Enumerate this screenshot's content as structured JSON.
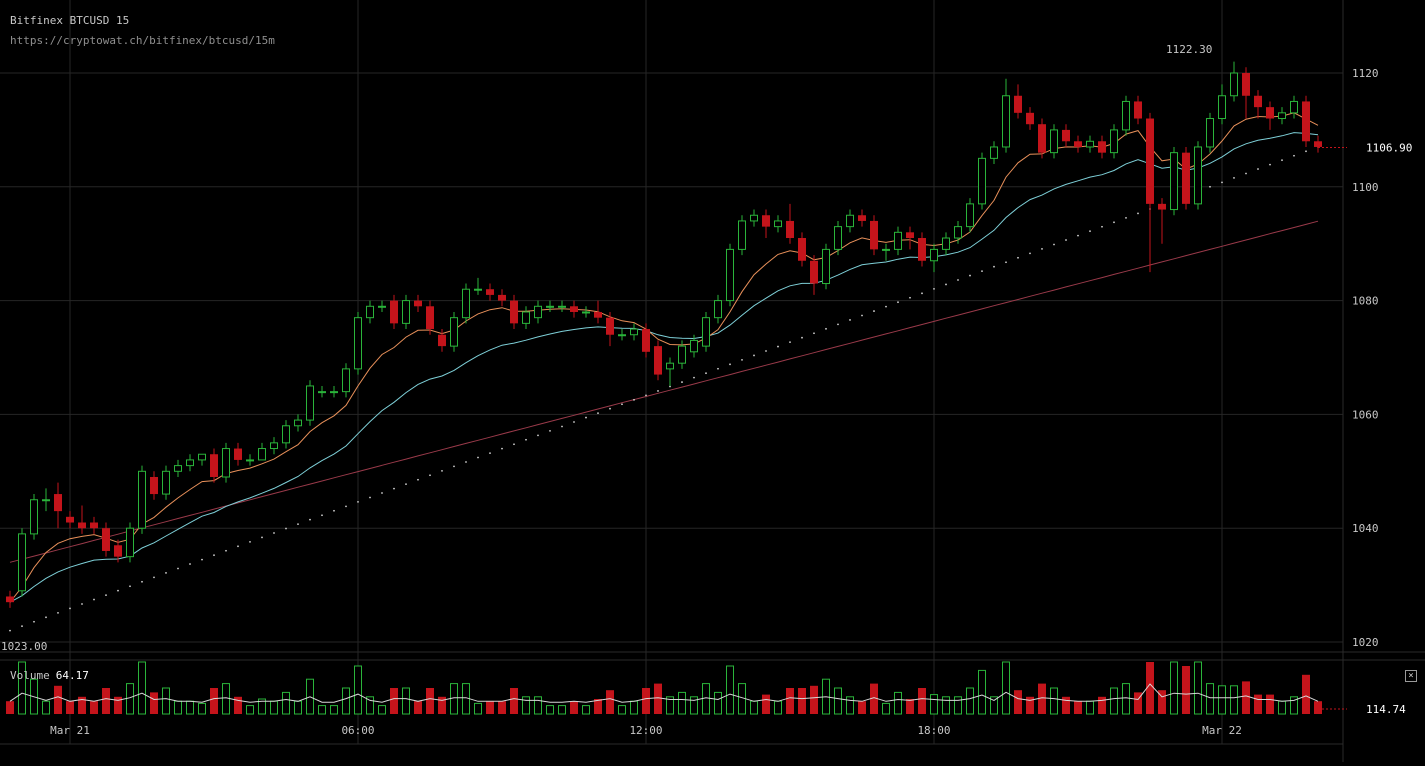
{
  "header": {
    "title": "Bitfinex BTCUSD 15",
    "url": "https://cryptowat.ch/bitfinex/btcusd/15m"
  },
  "volume_panel": {
    "label": "Volume",
    "value": "64.17",
    "axis_value": "114.74"
  },
  "price_panel": {
    "current_price": "1106.90",
    "high_label": "1122.30",
    "low_label": "1023.00"
  },
  "colors": {
    "background": "#000000",
    "up": "#2ab43a",
    "down": "#c4141b",
    "ma_fast": "#e8905a",
    "ma_slow": "#7ed0d8",
    "ma_long": "#9a3a4a",
    "grid": "#262626",
    "text": "#c8c8c8",
    "psar": "#cfcfcf"
  },
  "chart_data": {
    "type": "candlestick",
    "y_ticks": [
      1020,
      1040,
      1060,
      1080,
      1100,
      1120
    ],
    "ylim": [
      1020,
      1126
    ],
    "x_ticks": [
      {
        "label": "Mar 21",
        "index": 5
      },
      {
        "label": "06:00",
        "index": 29
      },
      {
        "label": "12:00",
        "index": 53
      },
      {
        "label": "18:00",
        "index": 77
      },
      {
        "label": "Mar 22",
        "index": 101
      }
    ],
    "candles": [
      [
        1028,
        1027,
        1029,
        1026
      ],
      [
        1029,
        1039,
        1040,
        1028
      ],
      [
        1039,
        1045,
        1046,
        1038
      ],
      [
        1045,
        1045,
        1047,
        1043
      ],
      [
        1046,
        1043,
        1048,
        1040
      ],
      [
        1042,
        1041,
        1043,
        1040
      ],
      [
        1041,
        1040,
        1044,
        1039
      ],
      [
        1041,
        1040,
        1042,
        1039
      ],
      [
        1040,
        1036,
        1041,
        1035
      ],
      [
        1037,
        1035,
        1038,
        1034
      ],
      [
        1035,
        1040,
        1041,
        1034
      ],
      [
        1040,
        1050,
        1051,
        1039
      ],
      [
        1049,
        1046,
        1050,
        1045
      ],
      [
        1046,
        1050,
        1051,
        1045
      ],
      [
        1050,
        1051,
        1052,
        1049
      ],
      [
        1051,
        1052,
        1053,
        1050
      ],
      [
        1052,
        1053,
        1053,
        1051
      ],
      [
        1053,
        1049,
        1054,
        1048
      ],
      [
        1049,
        1054,
        1055,
        1048
      ],
      [
        1054,
        1052,
        1055,
        1051
      ],
      [
        1052,
        1052,
        1053,
        1051
      ],
      [
        1052,
        1054,
        1055,
        1052
      ],
      [
        1054,
        1055,
        1056,
        1053
      ],
      [
        1055,
        1058,
        1059,
        1054
      ],
      [
        1058,
        1059,
        1060,
        1057
      ],
      [
        1059,
        1065,
        1066,
        1058
      ],
      [
        1064,
        1064,
        1065,
        1063
      ],
      [
        1064,
        1064,
        1065,
        1063
      ],
      [
        1064,
        1068,
        1069,
        1063
      ],
      [
        1068,
        1077,
        1078,
        1067
      ],
      [
        1077,
        1079,
        1080,
        1076
      ],
      [
        1079,
        1079,
        1080,
        1078
      ],
      [
        1080,
        1076,
        1081,
        1075
      ],
      [
        1076,
        1080,
        1081,
        1075
      ],
      [
        1080,
        1079,
        1081,
        1078
      ],
      [
        1079,
        1075,
        1080,
        1074
      ],
      [
        1074,
        1072,
        1075,
        1071
      ],
      [
        1072,
        1077,
        1078,
        1071
      ],
      [
        1077,
        1082,
        1083,
        1076
      ],
      [
        1082,
        1082,
        1084,
        1081
      ],
      [
        1082,
        1081,
        1083,
        1080
      ],
      [
        1081,
        1080,
        1082,
        1079
      ],
      [
        1080,
        1076,
        1081,
        1075
      ],
      [
        1076,
        1078,
        1079,
        1075
      ],
      [
        1077,
        1079,
        1080,
        1076
      ],
      [
        1079,
        1079,
        1080,
        1078
      ],
      [
        1079,
        1079,
        1080,
        1078
      ],
      [
        1079,
        1078,
        1080,
        1077
      ],
      [
        1078,
        1078,
        1079,
        1077
      ],
      [
        1078,
        1077,
        1080,
        1076
      ],
      [
        1077,
        1074,
        1078,
        1072
      ],
      [
        1074,
        1074,
        1075,
        1073
      ],
      [
        1074,
        1075,
        1076,
        1073
      ],
      [
        1075,
        1071,
        1076,
        1070
      ],
      [
        1072,
        1067,
        1073,
        1066
      ],
      [
        1068,
        1069,
        1070,
        1065
      ],
      [
        1069,
        1072,
        1073,
        1068
      ],
      [
        1071,
        1073,
        1074,
        1070
      ],
      [
        1072,
        1077,
        1078,
        1071
      ],
      [
        1077,
        1080,
        1081,
        1076
      ],
      [
        1080,
        1089,
        1090,
        1079
      ],
      [
        1089,
        1094,
        1095,
        1088
      ],
      [
        1094,
        1095,
        1096,
        1093
      ],
      [
        1095,
        1093,
        1096,
        1091
      ],
      [
        1093,
        1094,
        1095,
        1092
      ],
      [
        1094,
        1091,
        1097,
        1090
      ],
      [
        1091,
        1087,
        1092,
        1086
      ],
      [
        1087,
        1083,
        1088,
        1081
      ],
      [
        1083,
        1089,
        1090,
        1082
      ],
      [
        1089,
        1093,
        1094,
        1088
      ],
      [
        1093,
        1095,
        1096,
        1092
      ],
      [
        1095,
        1094,
        1096,
        1093
      ],
      [
        1094,
        1089,
        1095,
        1088
      ],
      [
        1089,
        1089,
        1090,
        1087
      ],
      [
        1089,
        1092,
        1093,
        1088
      ],
      [
        1092,
        1091,
        1093,
        1089
      ],
      [
        1091,
        1087,
        1092,
        1086
      ],
      [
        1087,
        1089,
        1090,
        1085
      ],
      [
        1089,
        1091,
        1092,
        1088
      ],
      [
        1091,
        1093,
        1094,
        1090
      ],
      [
        1093,
        1097,
        1098,
        1092
      ],
      [
        1097,
        1105,
        1106,
        1096
      ],
      [
        1105,
        1107,
        1108,
        1104
      ],
      [
        1107,
        1116,
        1119,
        1106
      ],
      [
        1116,
        1113,
        1118,
        1112
      ],
      [
        1113,
        1111,
        1114,
        1110
      ],
      [
        1111,
        1106,
        1112,
        1105
      ],
      [
        1106,
        1110,
        1111,
        1105
      ],
      [
        1110,
        1108,
        1111,
        1107
      ],
      [
        1108,
        1107,
        1109,
        1106
      ],
      [
        1107,
        1108,
        1109,
        1106
      ],
      [
        1108,
        1106,
        1109,
        1105
      ],
      [
        1106,
        1110,
        1111,
        1105
      ],
      [
        1110,
        1115,
        1116,
        1109
      ],
      [
        1115,
        1112,
        1116,
        1111
      ],
      [
        1112,
        1097,
        1113,
        1085
      ],
      [
        1097,
        1096,
        1098,
        1090
      ],
      [
        1096,
        1106,
        1107,
        1095
      ],
      [
        1106,
        1097,
        1107,
        1096
      ],
      [
        1097,
        1107,
        1108,
        1096
      ],
      [
        1107,
        1112,
        1113,
        1106
      ],
      [
        1112,
        1116,
        1118,
        1111
      ],
      [
        1116,
        1120,
        1122,
        1115
      ],
      [
        1120,
        1116,
        1121,
        1112
      ],
      [
        1116,
        1114,
        1117,
        1112
      ],
      [
        1114,
        1112,
        1115,
        1110
      ],
      [
        1112,
        1113,
        1114,
        1111
      ],
      [
        1113,
        1115,
        1116,
        1112
      ],
      [
        1115,
        1108,
        1116,
        1107
      ],
      [
        1108,
        1107,
        1109,
        1106
      ]
    ]
  }
}
